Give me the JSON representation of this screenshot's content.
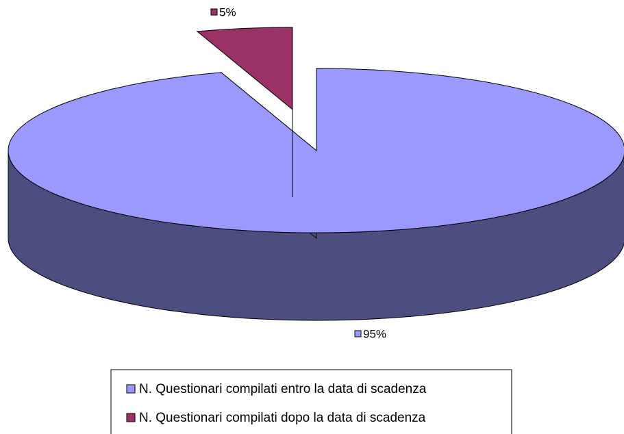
{
  "chart_data": {
    "type": "pie",
    "categories": [
      "N. Questionari compilati entro la data di scadenza",
      "N. Questionari compilati dopo la data di scadenza"
    ],
    "values": [
      95,
      5
    ],
    "value_labels": [
      "95%",
      "5%"
    ],
    "colors": [
      "#9999ff",
      "#993366"
    ],
    "legend": "bottom"
  }
}
